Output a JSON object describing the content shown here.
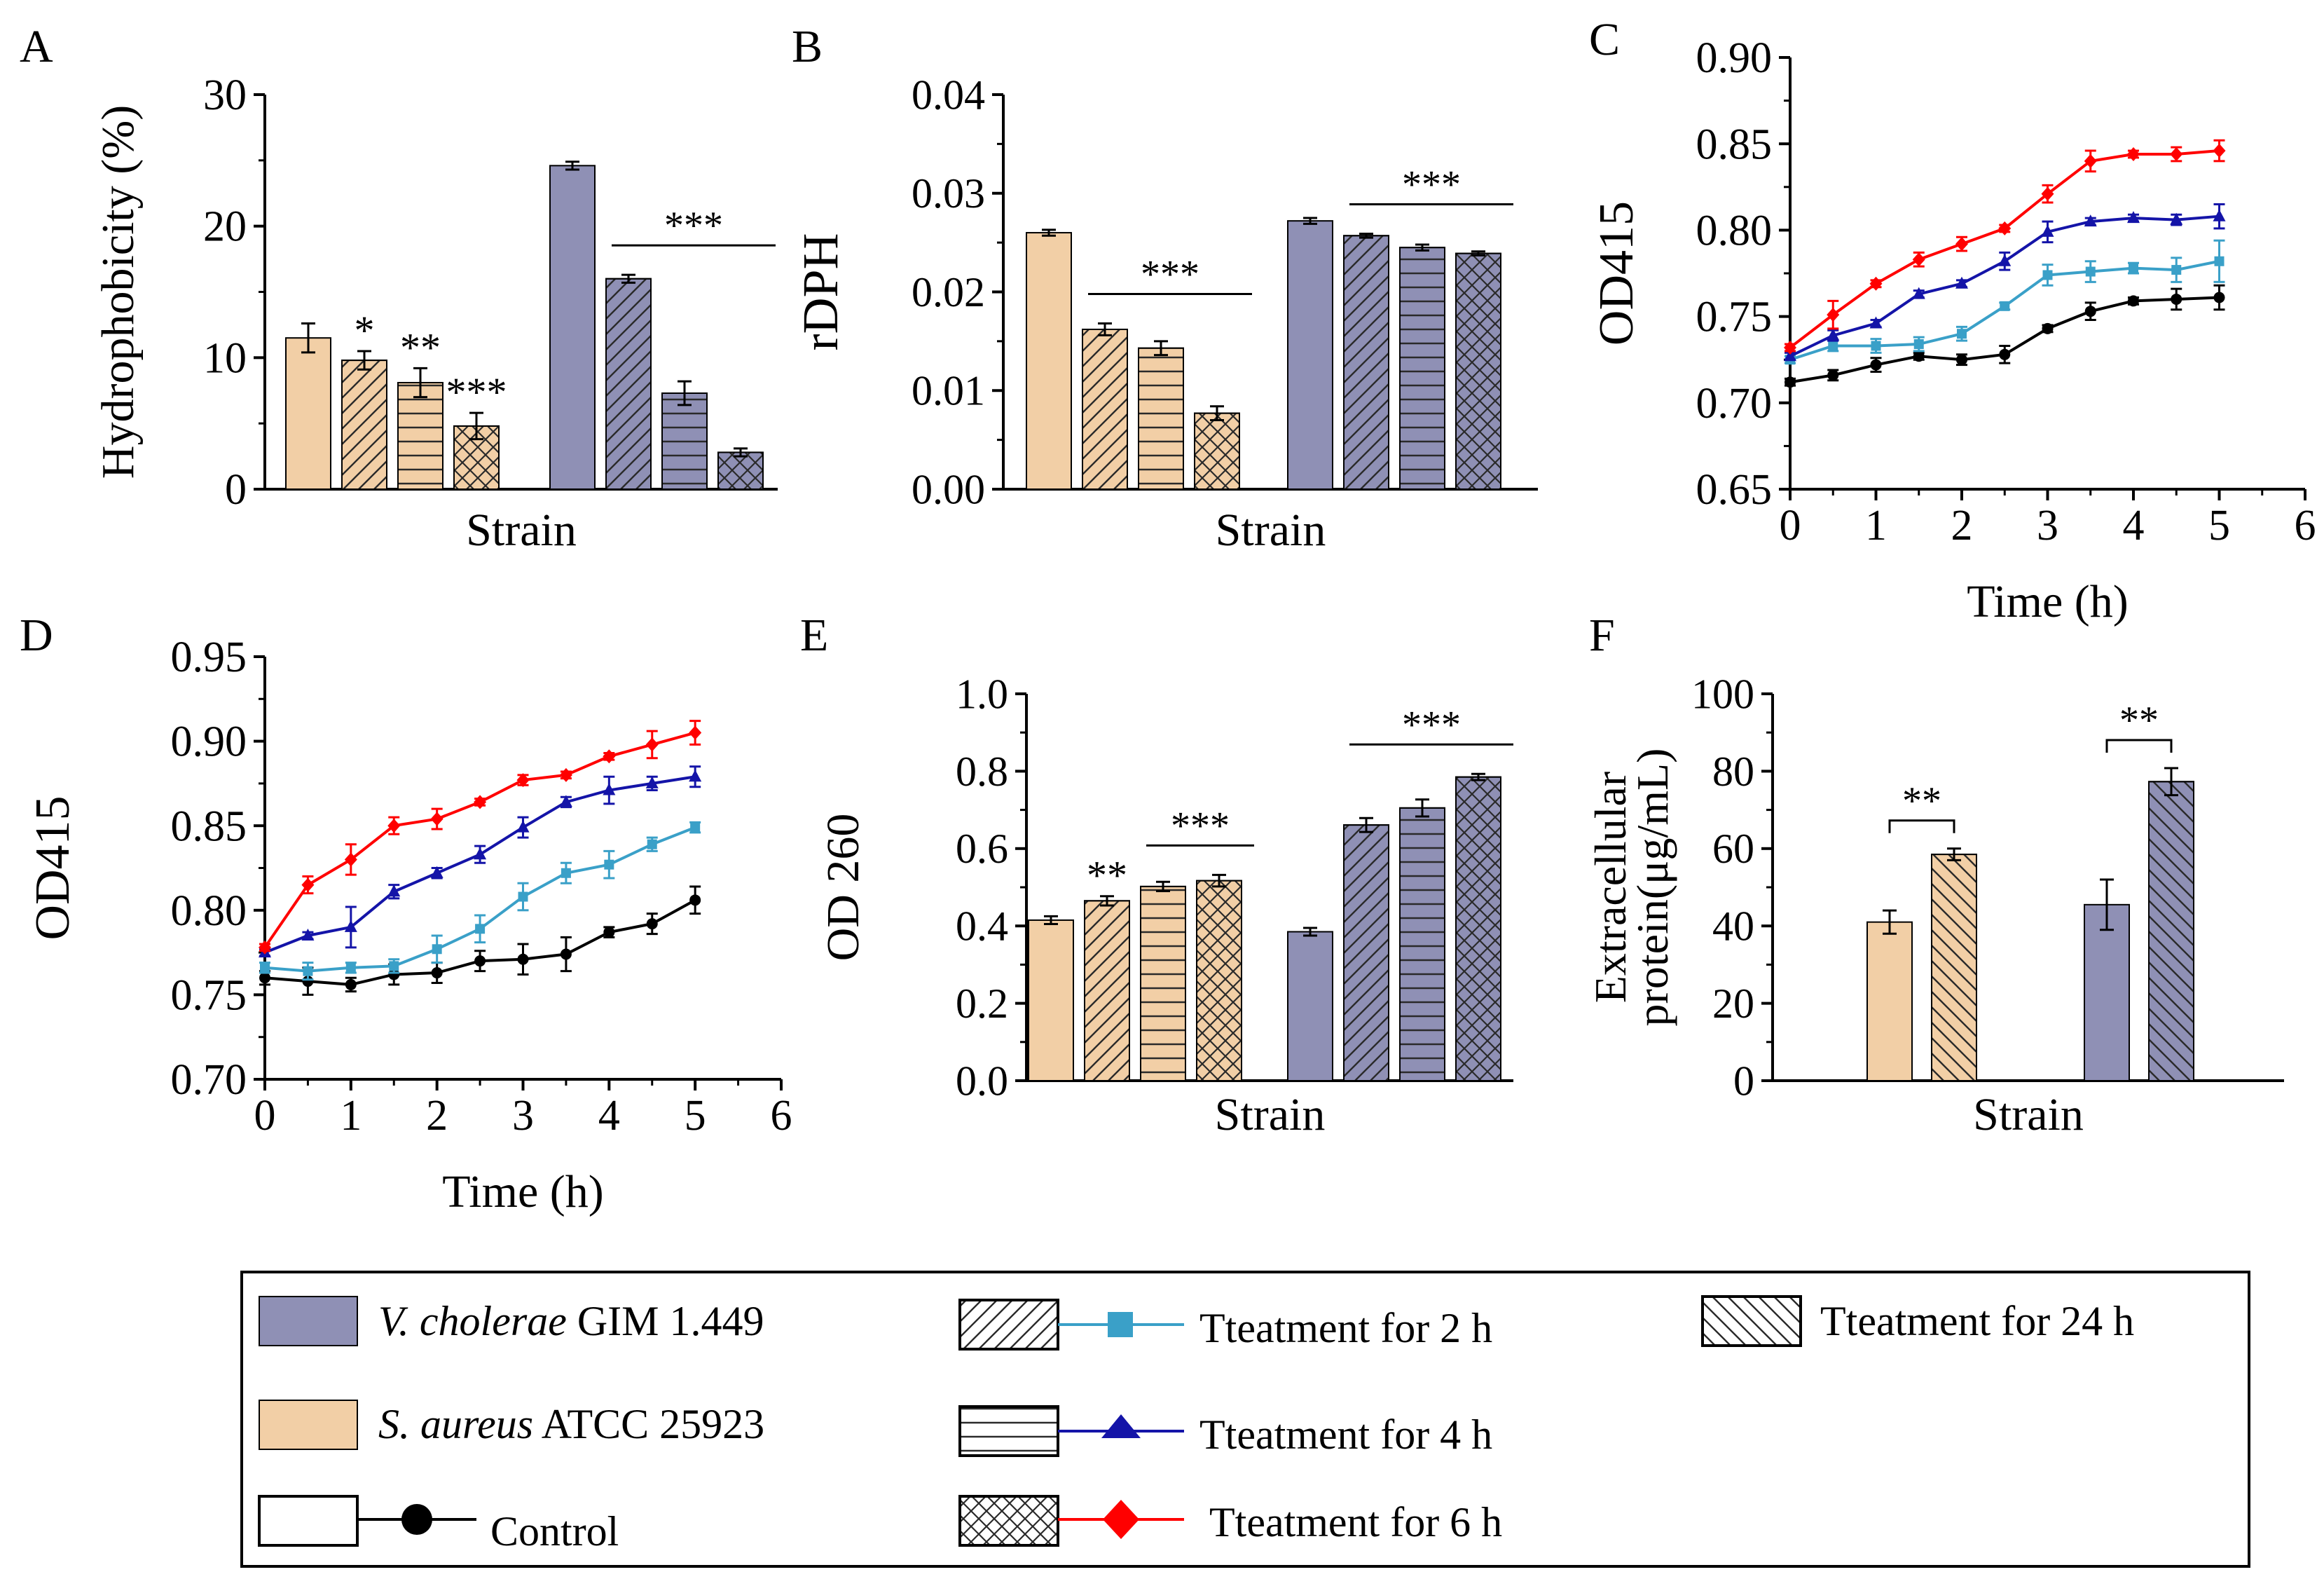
{
  "colors": {
    "sa": "#f2cfa6",
    "vc": "#8f90b5",
    "control": "#000000",
    "t2": "#3aa0c8",
    "t4": "#1414a8",
    "t6": "#ff0000"
  },
  "chart_data": [
    {
      "panel": "A",
      "type": "bar",
      "xlabel": "Strain",
      "ylabel": "Hydrophobicity (%)",
      "ylim": [
        0,
        30
      ],
      "yticks": [
        "0",
        "10",
        "20",
        "30"
      ],
      "groups": [
        {
          "strain": "S. aureus ATCC 25923",
          "color": "sa",
          "values": [
            11.5,
            9.8,
            8.1,
            4.8
          ],
          "errors": [
            1.1,
            0.7,
            1.1,
            1.0
          ],
          "patterns": [
            "none",
            "diag",
            "horiz",
            "cross"
          ],
          "stars": [
            "",
            "*",
            "**",
            "***"
          ],
          "bracket": ""
        },
        {
          "strain": "V. cholerae GIM 1.449",
          "color": "vc",
          "values": [
            24.6,
            16.0,
            7.3,
            2.8
          ],
          "errors": [
            0.3,
            0.3,
            0.9,
            0.3
          ],
          "patterns": [
            "none",
            "diag",
            "horiz",
            "cross"
          ],
          "stars": [
            "",
            "",
            "",
            ""
          ],
          "bracket": "***"
        }
      ]
    },
    {
      "panel": "B",
      "type": "bar",
      "xlabel": "Strain",
      "ylabel": "rDPH",
      "ylim": [
        0,
        0.04
      ],
      "yticks": [
        "0.00",
        "0.01",
        "0.02",
        "0.03",
        "0.04"
      ],
      "groups": [
        {
          "strain": "S. aureus ATCC 25923",
          "color": "sa",
          "values": [
            0.026,
            0.0162,
            0.0143,
            0.0077
          ],
          "errors": [
            0.0003,
            0.0006,
            0.0007,
            0.0007
          ],
          "patterns": [
            "none",
            "diag",
            "horiz",
            "cross"
          ],
          "stars": [
            "",
            "",
            "",
            ""
          ],
          "bracket": "***"
        },
        {
          "strain": "V. cholerae GIM 1.449",
          "color": "vc",
          "values": [
            0.0272,
            0.0257,
            0.0245,
            0.0239
          ],
          "errors": [
            0.0003,
            0.0002,
            0.0003,
            0.0002
          ],
          "patterns": [
            "none",
            "diag",
            "horiz",
            "cross"
          ],
          "stars": [
            "",
            "",
            "",
            ""
          ],
          "bracket": "***"
        }
      ]
    },
    {
      "panel": "C",
      "type": "line",
      "xlabel": "Time (h)",
      "ylabel": "OD415",
      "xlim": [
        0,
        6
      ],
      "ylim": [
        0.65,
        0.9
      ],
      "xticks": [
        "0",
        "1",
        "2",
        "3",
        "4",
        "5",
        "6"
      ],
      "yticks": [
        "0.65",
        "0.70",
        "0.75",
        "0.80",
        "0.85",
        "0.90"
      ],
      "x": [
        0,
        0.5,
        1,
        1.5,
        2,
        2.5,
        3,
        3.5,
        4,
        4.5,
        5
      ],
      "series": [
        {
          "name": "Control",
          "color": "control",
          "marker": "circle",
          "values": [
            0.712,
            0.716,
            0.722,
            0.727,
            0.725,
            0.728,
            0.743,
            0.753,
            0.759,
            0.76,
            0.761
          ],
          "errors": [
            0.002,
            0.003,
            0.004,
            0.002,
            0.003,
            0.005,
            0.002,
            0.005,
            0.002,
            0.006,
            0.007
          ]
        },
        {
          "name": "Tteatment for 2 h",
          "color": "t2",
          "marker": "square",
          "values": [
            0.725,
            0.733,
            0.733,
            0.734,
            0.74,
            0.756,
            0.774,
            0.776,
            0.778,
            0.777,
            0.782
          ],
          "errors": [
            0.002,
            0.003,
            0.004,
            0.004,
            0.004,
            0.002,
            0.006,
            0.006,
            0.003,
            0.007,
            0.012
          ]
        },
        {
          "name": "Tteatment for 4 h",
          "color": "t4",
          "marker": "triangle",
          "values": [
            0.727,
            0.739,
            0.746,
            0.763,
            0.769,
            0.782,
            0.799,
            0.805,
            0.807,
            0.806,
            0.808
          ],
          "errors": [
            0.002,
            0.003,
            0.002,
            0.002,
            0.002,
            0.005,
            0.006,
            0.002,
            0.002,
            0.003,
            0.007
          ]
        },
        {
          "name": "Tteatment for 6 h",
          "color": "t6",
          "marker": "diamond",
          "values": [
            0.732,
            0.751,
            0.769,
            0.783,
            0.792,
            0.801,
            0.821,
            0.84,
            0.844,
            0.844,
            0.846
          ],
          "errors": [
            0.002,
            0.008,
            0.002,
            0.004,
            0.004,
            0.002,
            0.005,
            0.006,
            0.002,
            0.004,
            0.006
          ]
        }
      ]
    },
    {
      "panel": "D",
      "type": "line",
      "xlabel": "Time (h)",
      "ylabel": "OD415",
      "xlim": [
        0,
        6
      ],
      "ylim": [
        0.7,
        0.95
      ],
      "xticks": [
        "0",
        "1",
        "2",
        "3",
        "4",
        "5",
        "6"
      ],
      "yticks": [
        "0.70",
        "0.75",
        "0.80",
        "0.85",
        "0.90",
        "0.95"
      ],
      "x": [
        0,
        0.5,
        1,
        1.5,
        2,
        2.5,
        3,
        3.5,
        4,
        4.5,
        5
      ],
      "series": [
        {
          "name": "Control",
          "color": "control",
          "marker": "circle",
          "values": [
            0.76,
            0.758,
            0.756,
            0.762,
            0.763,
            0.77,
            0.771,
            0.774,
            0.787,
            0.792,
            0.806
          ],
          "errors": [
            0.004,
            0.008,
            0.004,
            0.006,
            0.006,
            0.006,
            0.009,
            0.01,
            0.003,
            0.006,
            0.008
          ]
        },
        {
          "name": "Tteatment for 2 h",
          "color": "t2",
          "marker": "square",
          "values": [
            0.766,
            0.764,
            0.766,
            0.767,
            0.777,
            0.789,
            0.808,
            0.822,
            0.827,
            0.839,
            0.849
          ],
          "errors": [
            0.003,
            0.005,
            0.003,
            0.004,
            0.008,
            0.008,
            0.008,
            0.006,
            0.008,
            0.004,
            0.003
          ]
        },
        {
          "name": "Tteatment for 4 h",
          "color": "t4",
          "marker": "triangle",
          "values": [
            0.775,
            0.785,
            0.79,
            0.811,
            0.822,
            0.833,
            0.849,
            0.864,
            0.871,
            0.875,
            0.879
          ],
          "errors": [
            0.002,
            0.002,
            0.012,
            0.004,
            0.003,
            0.005,
            0.006,
            0.003,
            0.008,
            0.004,
            0.006
          ]
        },
        {
          "name": "Tteatment for 6 h",
          "color": "t6",
          "marker": "diamond",
          "values": [
            0.778,
            0.815,
            0.83,
            0.85,
            0.854,
            0.864,
            0.877,
            0.88,
            0.891,
            0.898,
            0.905
          ],
          "errors": [
            0.002,
            0.005,
            0.009,
            0.005,
            0.006,
            0.002,
            0.003,
            0.002,
            0.002,
            0.008,
            0.007
          ]
        }
      ]
    },
    {
      "panel": "E",
      "type": "bar",
      "xlabel": "Strain",
      "ylabel": "OD 260",
      "ylim": [
        0,
        1.0
      ],
      "yticks": [
        "0.0",
        "0.2",
        "0.4",
        "0.6",
        "0.8",
        "1.0"
      ],
      "groups": [
        {
          "strain": "S. aureus ATCC 25923",
          "color": "sa",
          "values": [
            0.415,
            0.465,
            0.502,
            0.517
          ],
          "errors": [
            0.01,
            0.012,
            0.012,
            0.015
          ],
          "patterns": [
            "none",
            "diag",
            "horiz",
            "cross"
          ],
          "stars": [
            "",
            "**",
            "",
            ""
          ],
          "bracket": "***",
          "bracketFrom": 2
        },
        {
          "strain": "V. cholerae GIM 1.449",
          "color": "vc",
          "values": [
            0.385,
            0.661,
            0.705,
            0.785
          ],
          "errors": [
            0.01,
            0.018,
            0.022,
            0.008
          ],
          "patterns": [
            "none",
            "diag",
            "horiz",
            "cross"
          ],
          "stars": [
            "",
            "",
            "",
            ""
          ],
          "bracket": "***"
        }
      ]
    },
    {
      "panel": "F",
      "type": "bar",
      "xlabel": "Strain",
      "ylabel": "Extracellular",
      "ylabel2": "protein(μg/mL)",
      "ylim": [
        0,
        100
      ],
      "yticks": [
        "0",
        "20",
        "40",
        "60",
        "80",
        "100"
      ],
      "groups": [
        {
          "strain": "S. aureus ATCC 25923",
          "color": "sa",
          "values": [
            41,
            58.5
          ],
          "errors": [
            3,
            1.5
          ],
          "patterns": [
            "none",
            "diag-back"
          ],
          "stars": [
            "",
            ""
          ],
          "bracket": "**",
          "bracketStyle": "hook"
        },
        {
          "strain": "V. cholerae GIM 1.449",
          "color": "vc",
          "values": [
            45.5,
            77.3
          ],
          "errors": [
            6.5,
            3.5
          ],
          "patterns": [
            "none",
            "diag-back"
          ],
          "stars": [
            "",
            ""
          ],
          "bracket": "**",
          "bracketStyle": "hook"
        }
      ]
    }
  ],
  "legend": {
    "vc_italic": "V. cholerae",
    "vc_rest": " GIM 1.449",
    "sa_italic": "S. aureus",
    "sa_rest": " ATCC 25923",
    "control": "Control",
    "t2": "Tteatment for  2 h",
    "t4": "Tteatment for  4 h",
    "t6": "Tteatment for  6 h",
    "t24": "Tteatment for 24 h"
  }
}
